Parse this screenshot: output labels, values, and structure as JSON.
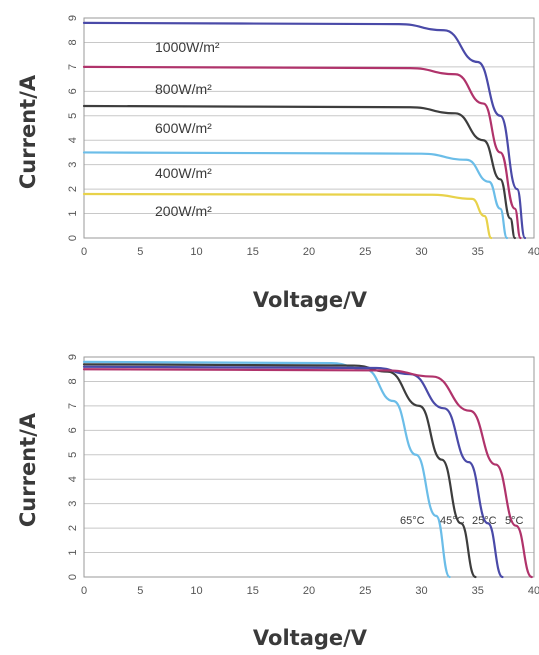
{
  "chart_data": [
    {
      "type": "line",
      "xlabel": "Voltage/V",
      "ylabel": "Current/A",
      "xlim": [
        0,
        40
      ],
      "ylim": [
        0,
        9
      ],
      "xticks": [
        "0",
        "5",
        "10",
        "15",
        "20",
        "25",
        "30",
        "35",
        "40"
      ],
      "yticks": [
        "0",
        "1",
        "2",
        "3",
        "4",
        "5",
        "6",
        "7",
        "8",
        "9"
      ],
      "grid": "horizontal",
      "series": [
        {
          "name": "1000W/m²",
          "color": "#4a4aa8",
          "isc": 8.8,
          "voc": 39.2,
          "values": [
            [
              0,
              8.8
            ],
            [
              28,
              8.75
            ],
            [
              32,
              8.5
            ],
            [
              35,
              7.2
            ],
            [
              37,
              5.0
            ],
            [
              38.5,
              2.0
            ],
            [
              39.2,
              0
            ]
          ]
        },
        {
          "name": "800W/m²",
          "color": "#b0336b",
          "isc": 7.0,
          "voc": 38.8,
          "values": [
            [
              0,
              7.0
            ],
            [
              29,
              6.95
            ],
            [
              33,
              6.7
            ],
            [
              35.5,
              5.5
            ],
            [
              37,
              3.5
            ],
            [
              38.3,
              1.2
            ],
            [
              38.8,
              0
            ]
          ]
        },
        {
          "name": "600W/m²",
          "color": "#3d3d3d",
          "isc": 5.4,
          "voc": 38.3,
          "values": [
            [
              0,
              5.4
            ],
            [
              29,
              5.35
            ],
            [
              33,
              5.1
            ],
            [
              35.5,
              4.0
            ],
            [
              37,
              2.4
            ],
            [
              37.9,
              0.8
            ],
            [
              38.3,
              0
            ]
          ]
        },
        {
          "name": "400W/m²",
          "color": "#6bbde8",
          "isc": 3.5,
          "voc": 37.6,
          "values": [
            [
              0,
              3.5
            ],
            [
              30,
              3.45
            ],
            [
              34,
              3.2
            ],
            [
              36,
              2.3
            ],
            [
              37,
              1.2
            ],
            [
              37.6,
              0
            ]
          ]
        },
        {
          "name": "200W/m²",
          "color": "#e8d24a",
          "isc": 1.8,
          "voc": 36.2,
          "values": [
            [
              0,
              1.8
            ],
            [
              31,
              1.77
            ],
            [
              34.5,
              1.6
            ],
            [
              35.6,
              0.9
            ],
            [
              36.2,
              0
            ]
          ]
        }
      ]
    },
    {
      "type": "line",
      "xlabel": "Voltage/V",
      "ylabel": "Current/A",
      "xlim": [
        0,
        40
      ],
      "ylim": [
        0,
        9
      ],
      "xticks": [
        "0",
        "5",
        "10",
        "15",
        "20",
        "25",
        "30",
        "35",
        "40"
      ],
      "yticks": [
        "0",
        "1",
        "2",
        "3",
        "4",
        "5",
        "6",
        "7",
        "8",
        "9"
      ],
      "grid": "horizontal",
      "series": [
        {
          "name": "65°C",
          "color": "#6bbde8",
          "isc": 8.8,
          "voc": 32.5,
          "values": [
            [
              0,
              8.8
            ],
            [
              22,
              8.75
            ],
            [
              25,
              8.5
            ],
            [
              27.5,
              7.2
            ],
            [
              29.5,
              5.0
            ],
            [
              31.3,
              2.5
            ],
            [
              32.5,
              0
            ]
          ]
        },
        {
          "name": "45°C",
          "color": "#3d3d3d",
          "isc": 8.7,
          "voc": 34.8,
          "values": [
            [
              0,
              8.7
            ],
            [
              24,
              8.65
            ],
            [
              27,
              8.4
            ],
            [
              29.8,
              7.0
            ],
            [
              31.8,
              4.8
            ],
            [
              33.5,
              2.2
            ],
            [
              34.8,
              0
            ]
          ]
        },
        {
          "name": "25°C",
          "color": "#4a4aa8",
          "isc": 8.6,
          "voc": 37.2,
          "values": [
            [
              0,
              8.6
            ],
            [
              26,
              8.55
            ],
            [
              29,
              8.3
            ],
            [
              32,
              6.9
            ],
            [
              34.2,
              4.7
            ],
            [
              35.9,
              2.2
            ],
            [
              37.2,
              0
            ]
          ]
        },
        {
          "name": "5°C",
          "color": "#b0336b",
          "isc": 8.5,
          "voc": 39.8,
          "values": [
            [
              0,
              8.5
            ],
            [
              27,
              8.45
            ],
            [
              31,
              8.2
            ],
            [
              34.3,
              6.8
            ],
            [
              36.6,
              4.6
            ],
            [
              38.4,
              2.1
            ],
            [
              39.8,
              0
            ]
          ]
        }
      ]
    }
  ],
  "labels": {
    "top": [
      "1000W/m²",
      "800W/m²",
      "600W/m²",
      "400W/m²",
      "200W/m²"
    ],
    "bottom": [
      "65°C",
      "45°C",
      "25°C",
      "5°C"
    ]
  }
}
